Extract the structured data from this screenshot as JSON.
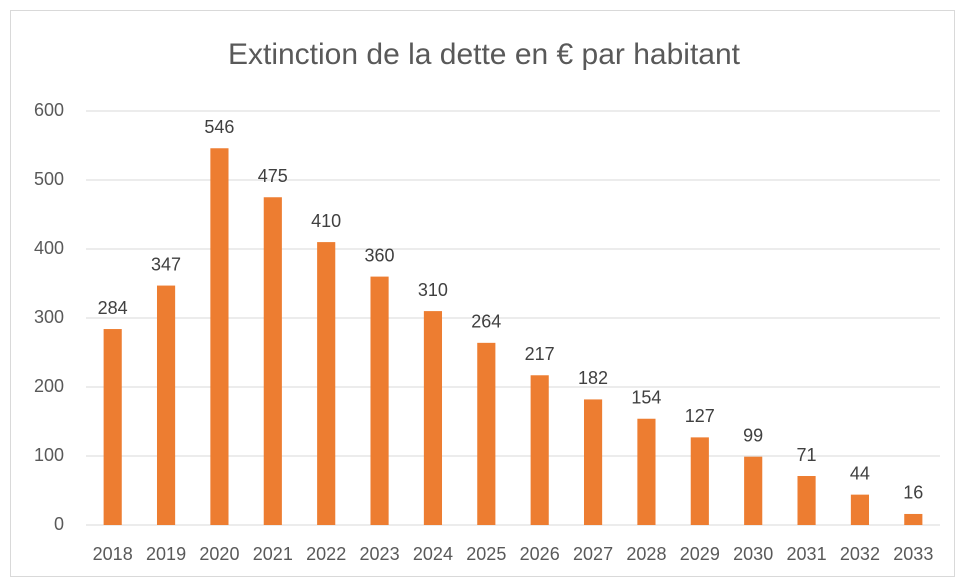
{
  "chart_data": {
    "type": "bar",
    "title": "Extinction de la dette en € par habitant",
    "categories": [
      "2018",
      "2019",
      "2020",
      "2021",
      "2022",
      "2023",
      "2024",
      "2025",
      "2026",
      "2027",
      "2028",
      "2029",
      "2030",
      "2031",
      "2032",
      "2033"
    ],
    "values": [
      284,
      347,
      546,
      475,
      410,
      360,
      310,
      264,
      217,
      182,
      154,
      127,
      99,
      71,
      44,
      16
    ],
    "color": "#ed7d31",
    "ylim": [
      0,
      600
    ],
    "yticks": [
      0,
      100,
      200,
      300,
      400,
      500,
      600
    ],
    "grid": true
  }
}
